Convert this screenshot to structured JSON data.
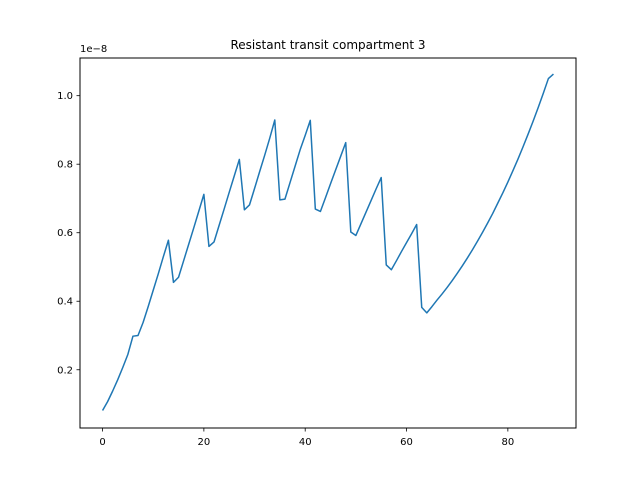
{
  "chart_data": {
    "type": "line",
    "title": "Resistant transit compartment 3",
    "xlabel": "",
    "ylabel": "",
    "offset_label": "1e−8",
    "xlim": [
      -4.45,
      93.45
    ],
    "ylim": [
      3e-10,
      1.11e-08
    ],
    "x_ticks": [
      0,
      20,
      40,
      60,
      80
    ],
    "x_tick_labels": [
      "0",
      "20",
      "40",
      "60",
      "80"
    ],
    "y_ticks": [
      2e-09,
      4e-09,
      6e-09,
      8e-09,
      1e-08
    ],
    "y_tick_labels": [
      "0.2",
      "0.4",
      "0.6",
      "0.8",
      "1.0"
    ],
    "grid": false,
    "legend": "none",
    "series": [
      {
        "color": "#1f77b4",
        "x": [
          0,
          1,
          2,
          3,
          4,
          5,
          6,
          7,
          8,
          9,
          10,
          11,
          12,
          13,
          14,
          15,
          16,
          17,
          18,
          19,
          20,
          21,
          22,
          23,
          24,
          25,
          26,
          27,
          28,
          29,
          30,
          31,
          32,
          33,
          34,
          35,
          36,
          37,
          38,
          39,
          40,
          41,
          42,
          43,
          44,
          45,
          46,
          47,
          48,
          49,
          50,
          51,
          52,
          53,
          54,
          55,
          56,
          57,
          58,
          59,
          60,
          61,
          62,
          63,
          64,
          65,
          66,
          67,
          68,
          69,
          70,
          71,
          72,
          73,
          74,
          75,
          76,
          77,
          78,
          79,
          80,
          81,
          82,
          83,
          84,
          85,
          86,
          87,
          88,
          89
        ],
        "values": [
          8.1e-10,
          1.07e-09,
          1.38e-09,
          1.71e-09,
          2.07e-09,
          2.45e-09,
          2.98e-09,
          3e-09,
          3.38e-09,
          3.84e-09,
          4.32e-09,
          4.8e-09,
          5.3e-09,
          5.78e-09,
          4.55e-09,
          4.7e-09,
          5.18e-09,
          5.66e-09,
          6.14e-09,
          6.63e-09,
          7.12e-09,
          5.6e-09,
          5.73e-09,
          6.21e-09,
          6.69e-09,
          7.18e-09,
          7.66e-09,
          8.14e-09,
          6.67e-09,
          6.81e-09,
          7.29e-09,
          7.78e-09,
          8.26e-09,
          8.76e-09,
          9.29e-09,
          6.96e-09,
          6.98e-09,
          7.46e-09,
          7.94e-09,
          8.42e-09,
          8.84e-09,
          9.28e-09,
          6.69e-09,
          6.62e-09,
          7.02e-09,
          7.43e-09,
          7.83e-09,
          8.23e-09,
          8.63e-09,
          6.02e-09,
          5.92e-09,
          6.26e-09,
          6.6e-09,
          6.94e-09,
          7.28e-09,
          7.61e-09,
          5.06e-09,
          4.92e-09,
          5.18e-09,
          5.45e-09,
          5.71e-09,
          5.97e-09,
          6.24e-09,
          3.82e-09,
          3.66e-09,
          3.84e-09,
          4.03e-09,
          4.21e-09,
          4.4e-09,
          4.6e-09,
          4.81e-09,
          5.03e-09,
          5.26e-09,
          5.5e-09,
          5.75e-09,
          6.01e-09,
          6.28e-09,
          6.56e-09,
          6.86e-09,
          7.16e-09,
          7.48e-09,
          7.81e-09,
          8.15e-09,
          8.51e-09,
          8.88e-09,
          9.26e-09,
          9.66e-09,
          1.007e-08,
          1.05e-08,
          1.063e-08
        ]
      }
    ]
  }
}
